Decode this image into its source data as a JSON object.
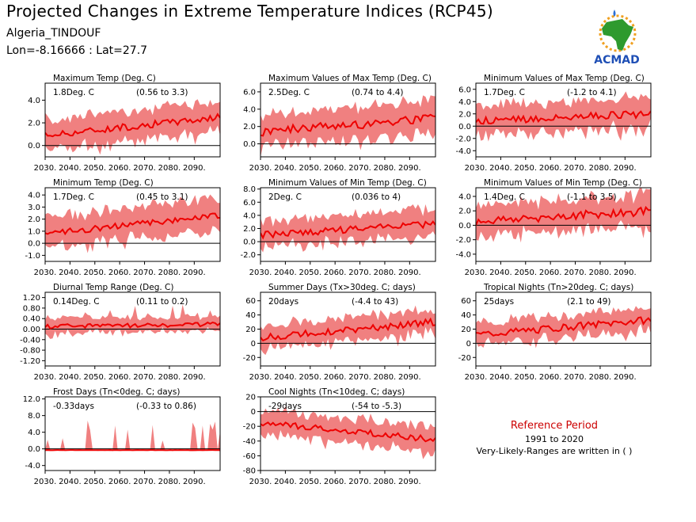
{
  "header": {
    "title": "Projected Changes in Extreme Temperature Indices (RCP45)",
    "location": "Algeria_TINDOUF",
    "coords": "Lon=-8.16666 : Lat=27.7"
  },
  "logo": {
    "text": "ACMAD",
    "icon": "africa-map-logo-icon"
  },
  "reference": {
    "title": "Reference Period",
    "years": "1991 to 2020",
    "note": "Very-Likely-Ranges are written in ( )"
  },
  "colors": {
    "band": "#f08080",
    "line": "#ee0000",
    "axis": "#000000"
  },
  "chart_data": [
    {
      "type": "area",
      "title": "Maximum Temp (Deg. C)",
      "stat": "1.8Deg. C",
      "range": "(0.56 to 3.3)",
      "x_ticks": [
        "2030.",
        "2040.",
        "2050.",
        "2060.",
        "2070.",
        "2080.",
        "2090."
      ],
      "y_ticks": [
        "4.0",
        "2.0",
        "0.0"
      ],
      "y_tick_values": [
        4,
        2,
        0
      ],
      "ylim": [
        -1,
        5.5
      ],
      "series": {
        "start": 0.9,
        "end": 2.5,
        "noise": 0.3,
        "band": 1.4,
        "spike": 0
      }
    },
    {
      "type": "area",
      "title": "Maximum Values of Max Temp (Deg. C)",
      "stat": "2.5Deg. C",
      "range": "(0.74 to 4.4)",
      "x_ticks": [
        "2030.",
        "2040.",
        "2050.",
        "2060.",
        "2070.",
        "2080.",
        "2090."
      ],
      "y_ticks": [
        "6.0",
        "4.0",
        "2.0",
        "0.0"
      ],
      "y_tick_values": [
        6,
        4,
        2,
        0
      ],
      "ylim": [
        -1.5,
        7
      ],
      "series": {
        "start": 1.4,
        "end": 3.0,
        "noise": 0.55,
        "band": 2.0,
        "spike": 0
      }
    },
    {
      "type": "area",
      "title": "Minimum Values of Max Temp (Deg. C)",
      "stat": "1.7Deg. C",
      "range": "(-1.2 to 4.1)",
      "x_ticks": [
        "2030.",
        "2040.",
        "2050.",
        "2060.",
        "2070.",
        "2080.",
        "2090."
      ],
      "y_ticks": [
        "6.0",
        "4.0",
        "2.0",
        "0.0",
        "-2.0",
        "-4.0"
      ],
      "y_tick_values": [
        6,
        4,
        2,
        0,
        -2,
        -4
      ],
      "ylim": [
        -5,
        7
      ],
      "series": {
        "start": 0.8,
        "end": 2.0,
        "noise": 0.6,
        "band": 2.6,
        "spike": 0
      }
    },
    {
      "type": "area",
      "title": "Minimum Temp (Deg. C)",
      "stat": "1.7Deg. C",
      "range": "(0.45 to 3.1)",
      "x_ticks": [
        "2030.",
        "2040.",
        "2050.",
        "2060.",
        "2070.",
        "2080.",
        "2090."
      ],
      "y_ticks": [
        "4.0",
        "3.0",
        "2.0",
        "1.0",
        "0.0",
        "-1.0"
      ],
      "y_tick_values": [
        4,
        3,
        2,
        1,
        0,
        -1
      ],
      "ylim": [
        -1.5,
        4.6
      ],
      "series": {
        "start": 0.8,
        "end": 2.3,
        "noise": 0.25,
        "band": 1.4,
        "spike": 0
      }
    },
    {
      "type": "area",
      "title": "Minimum Values of Min Temp (Deg. C)",
      "stat": "2Deg. C",
      "range": "(0.036 to 4)",
      "x_ticks": [
        "2030.",
        "2040.",
        "2050.",
        "2060.",
        "2070.",
        "2080.",
        "2090."
      ],
      "y_ticks": [
        "8.0",
        "6.0",
        "4.0",
        "2.0",
        "0.0",
        "-2.0"
      ],
      "y_tick_values": [
        8,
        6,
        4,
        2,
        0,
        -2
      ],
      "ylim": [
        -3,
        8.2
      ],
      "series": {
        "start": 1.0,
        "end": 2.7,
        "noise": 0.5,
        "band": 2.2,
        "spike": 0
      }
    },
    {
      "type": "area",
      "title": "Minimum Values of Min Temp (Deg. C)",
      "stat": "1.4Deg. C",
      "range": "(-1.1 to 3.5)",
      "x_ticks": [
        "2030.",
        "2040.",
        "2050.",
        "2060.",
        "2070.",
        "2080.",
        "2090."
      ],
      "y_ticks": [
        "4.0",
        "2.0",
        "0.0",
        "-2.0",
        "-4.0"
      ],
      "y_tick_values": [
        4,
        2,
        0,
        -2,
        -4
      ],
      "ylim": [
        -5,
        5.2
      ],
      "series": {
        "start": 0.5,
        "end": 2.0,
        "noise": 0.6,
        "band": 2.4,
        "spike": 0
      }
    },
    {
      "type": "area",
      "title": "Diurnal Temp Range (Deg. C)",
      "stat": "0.14Deg. C",
      "range": "(0.11 to 0.2)",
      "x_ticks": [
        "2030.",
        "2040.",
        "2050.",
        "2060.",
        "2070.",
        "2080.",
        "2090."
      ],
      "y_ticks": [
        "1.20",
        "0.80",
        "0.40",
        "0.00",
        "-0.40",
        "-0.80",
        "-1.20"
      ],
      "y_tick_values": [
        1.2,
        0.8,
        0.4,
        0,
        -0.4,
        -0.8,
        -1.2
      ],
      "ylim": [
        -1.4,
        1.4
      ],
      "series": {
        "start": 0.1,
        "end": 0.18,
        "noise": 0.08,
        "band": 0.3,
        "spike": 0.5
      }
    },
    {
      "type": "area",
      "title": "Summer Days (Tx>30deg. C; days)",
      "stat": "20days",
      "range": "(-4.4 to 43)",
      "x_ticks": [
        "2030.",
        "2040.",
        "2050.",
        "2060.",
        "2070.",
        "2080.",
        "2090."
      ],
      "y_ticks": [
        "60",
        "40",
        "20",
        "0",
        "-20"
      ],
      "y_tick_values": [
        60,
        40,
        20,
        0,
        -20
      ],
      "ylim": [
        -32,
        72
      ],
      "series": {
        "start": 8,
        "end": 30,
        "noise": 5,
        "band": 18,
        "spike": 0
      }
    },
    {
      "type": "area",
      "title": "Tropical Nights (Tn>20deg. C; days)",
      "stat": "25days",
      "range": "(2.1 to 49)",
      "x_ticks": [
        "2030.",
        "2040.",
        "2050.",
        "2060.",
        "2070.",
        "2080.",
        "2090."
      ],
      "y_ticks": [
        "60",
        "40",
        "20",
        "0",
        "-20"
      ],
      "y_tick_values": [
        60,
        40,
        20,
        0,
        -20
      ],
      "ylim": [
        -32,
        72
      ],
      "series": {
        "start": 12,
        "end": 33,
        "noise": 5,
        "band": 17,
        "spike": 0
      }
    },
    {
      "type": "area",
      "title": "Frost Days (Tn<0deg. C; days)",
      "stat": "-0.33days",
      "range": "(-0.33 to 0.86)",
      "x_ticks": [
        "2030.",
        "2040.",
        "2050.",
        "2060.",
        "2070.",
        "2080.",
        "2090."
      ],
      "y_ticks": [
        "12.0",
        "8.0",
        "4.0",
        "0.0",
        "-4.0"
      ],
      "y_tick_values": [
        12,
        8,
        4,
        0,
        -4
      ],
      "ylim": [
        -5.2,
        12.5
      ],
      "series": {
        "start": -0.3,
        "end": -0.3,
        "noise": 0.02,
        "band": 0.15,
        "spike": 7
      }
    },
    {
      "type": "area",
      "title": "Cool Nights (Tn<10deg. C; days)",
      "stat": "-29days",
      "range": "(-54 to -5.3)",
      "x_ticks": [
        "2030.",
        "2040.",
        "2050.",
        "2060.",
        "2070.",
        "2080.",
        "2090."
      ],
      "y_ticks": [
        "20",
        "0",
        "-20",
        "-40",
        "-60",
        "-80"
      ],
      "y_tick_values": [
        20,
        0,
        -20,
        -40,
        -60,
        -80
      ],
      "ylim": [
        -80,
        20
      ],
      "series": {
        "start": -15,
        "end": -38,
        "noise": 4,
        "band": 18,
        "spike": 0
      }
    }
  ]
}
